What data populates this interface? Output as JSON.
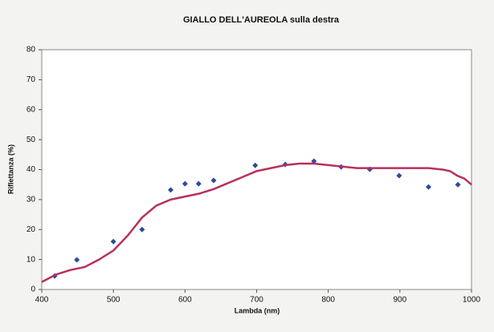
{
  "chart_data": {
    "type": "scatter",
    "title": "GIALLO DELL'AUREOLA sulla destra",
    "xlabel": "Lambda (nm)",
    "ylabel": "Riflettanza (%)",
    "xlim": [
      400,
      1000
    ],
    "xticks": [
      400,
      500,
      600,
      700,
      800,
      900,
      1000
    ],
    "ylim": [
      0,
      80
    ],
    "yticks": [
      0,
      10,
      20,
      30,
      40,
      50,
      60,
      70,
      80
    ],
    "grid": false,
    "series": [
      {
        "color": "#2a4d9a",
        "marker": "diamond",
        "x": [
          418,
          449,
          500,
          540,
          580,
          600,
          619,
          640,
          698,
          740,
          780,
          818,
          858,
          899,
          940,
          981
        ],
        "values": [
          4.5,
          9.9,
          16,
          20,
          33.2,
          35.3,
          35.3,
          36.4,
          41.4,
          41.7,
          42.8,
          40.9,
          40.1,
          38,
          34.2,
          35
        ]
      },
      {
        "color": "#b8305f",
        "marker": "line",
        "x": [
          400,
          420,
          440,
          460,
          480,
          500,
          520,
          540,
          560,
          580,
          600,
          620,
          640,
          660,
          680,
          700,
          720,
          740,
          760,
          780,
          800,
          820,
          840,
          860,
          880,
          900,
          920,
          940,
          960,
          970,
          980,
          990,
          1000
        ],
        "values": [
          2.5,
          5,
          6.5,
          7.5,
          10,
          13,
          18,
          24,
          28,
          30,
          31,
          32,
          33.5,
          35.5,
          37.5,
          39.5,
          40.5,
          41.5,
          42,
          42,
          41.5,
          41,
          40.5,
          40.5,
          40.5,
          40.5,
          40.5,
          40.5,
          40,
          39.5,
          38,
          37,
          35
        ]
      }
    ]
  }
}
